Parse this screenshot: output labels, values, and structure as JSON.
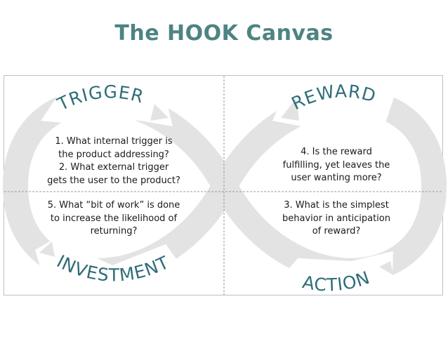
{
  "title": "The HOOK Canvas",
  "stages": {
    "trigger": "TRIGGER",
    "reward": "REWARD",
    "action": "ACTION",
    "investment": "INVESTMENT"
  },
  "questions": {
    "trigger": [
      "1. What internal trigger is",
      "the product addressing?",
      "2. What external trigger",
      "gets the user to the product?"
    ],
    "investment": [
      "5. What “bit of work” is done",
      "to increase the likelihood of",
      "returning?"
    ],
    "reward": [
      "4. Is the reward",
      "fulfilling, yet leaves the",
      "user wanting more?"
    ],
    "action": [
      "3. What is the simplest",
      "behavior in anticipation",
      "of reward?"
    ]
  },
  "colors": {
    "title": "#4d8482",
    "stage_label": "#2f6d78",
    "loop": "#e2e2e2",
    "border": "#b8c2c6"
  }
}
